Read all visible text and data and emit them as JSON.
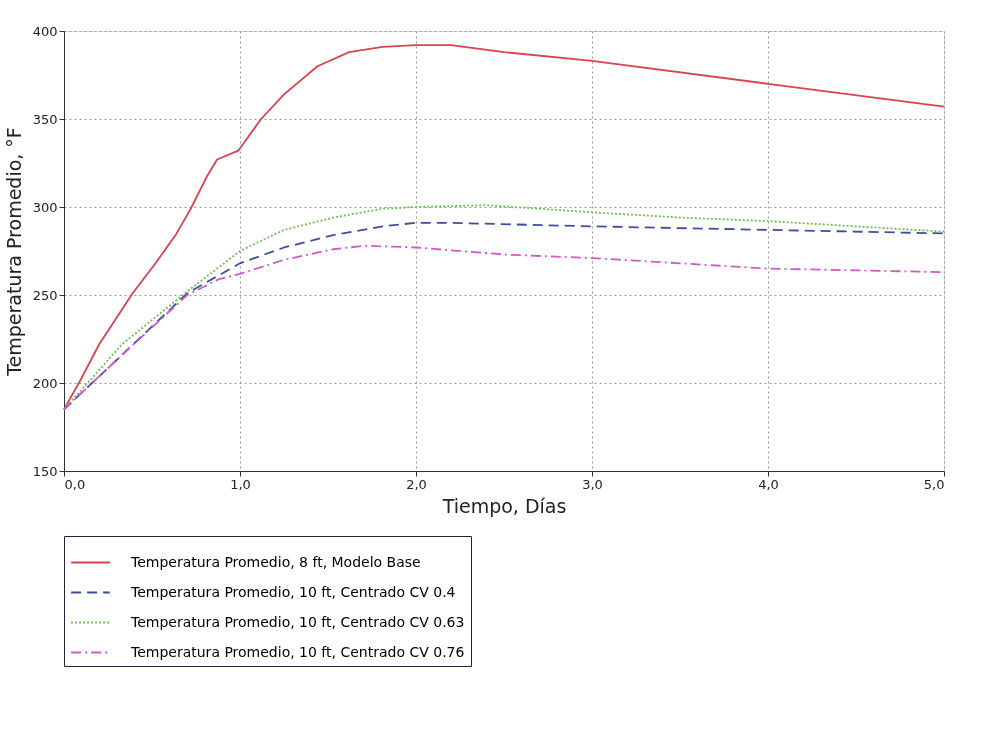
{
  "chart_data": {
    "type": "line",
    "xlabel": "Tiempo, Días",
    "ylabel": "Temperatura Promedio, °F",
    "xlim": [
      0,
      5
    ],
    "xticks": [
      {
        "value": 0,
        "label": "0,0"
      },
      {
        "value": 1,
        "label": "1,0"
      },
      {
        "value": 2,
        "label": "2,0"
      },
      {
        "value": 3,
        "label": "3,0"
      },
      {
        "value": 4,
        "label": "4,0"
      },
      {
        "value": 5,
        "label": "5,0"
      }
    ],
    "ylim": [
      150,
      400
    ],
    "yticks": [
      150,
      200,
      250,
      300,
      350,
      400
    ],
    "grid": true,
    "legend": "bottom",
    "marker": "none",
    "series": [
      {
        "name": "Temperatura Promedio, 8 ft, Modelo Base",
        "color": "#d9434f",
        "line_style": "solid",
        "x": [
          0,
          0.09,
          0.2,
          0.39,
          0.52,
          0.64,
          0.72,
          0.81,
          0.87,
          0.99,
          1.12,
          1.25,
          1.44,
          1.62,
          1.81,
          2.0,
          2.2,
          2.5,
          3.0,
          4.0,
          5.0
        ],
        "values": [
          185,
          201,
          222,
          251,
          268,
          285,
          299,
          317,
          327,
          332,
          350,
          364,
          380,
          388,
          391,
          392,
          392,
          388,
          383,
          370,
          357
        ]
      },
      {
        "name": "Temperatura Promedio, 10 ft, Centrado CV 0.4",
        "color": "#3a4fa0",
        "line_style": "dashed",
        "x": [
          0,
          0.33,
          0.7,
          1.0,
          1.25,
          1.53,
          1.81,
          2.0,
          2.2,
          3.0,
          4.0,
          5.0
        ],
        "values": [
          185,
          216,
          251,
          268,
          277,
          284,
          289,
          291,
          291,
          289,
          287,
          285
        ]
      },
      {
        "name": "Temperatura Promedio, 10 ft, Centrado CV 0.63",
        "color": "#6fbf5a",
        "line_style": "dotted",
        "x": [
          0,
          0.33,
          0.7,
          1.0,
          1.25,
          1.53,
          1.81,
          2.0,
          2.4,
          3.0,
          3.5,
          4.0,
          4.5,
          5.0
        ],
        "values": [
          185,
          222,
          252,
          275,
          287,
          294,
          299,
          300,
          301,
          297,
          294,
          292,
          289,
          286
        ]
      },
      {
        "name": "Temperatura Promedio, 10 ft, Centrado CV 0.76",
        "color": "#d05ac8",
        "line_style": "dashdot",
        "x": [
          0,
          0.33,
          0.7,
          0.88,
          1.0,
          1.25,
          1.53,
          1.71,
          2.0,
          2.5,
          3.0,
          3.5,
          4.0,
          4.5,
          5.0
        ],
        "values": [
          185,
          216,
          250,
          259,
          262,
          270,
          276,
          278,
          277,
          273,
          271,
          268,
          265,
          264,
          263
        ]
      }
    ]
  }
}
